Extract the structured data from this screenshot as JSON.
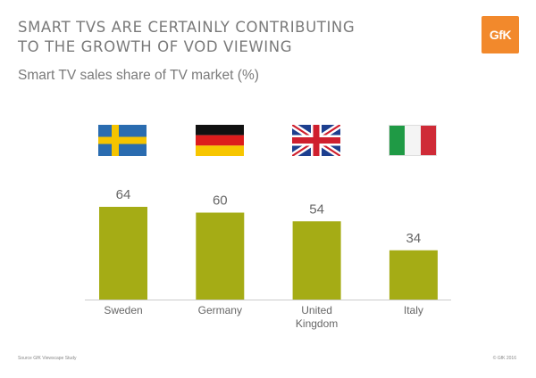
{
  "header": {
    "title_line1": "SMART TVS ARE CERTAINLY CONTRIBUTING",
    "title_line2": "TO THE GROWTH OF VOD VIEWING",
    "subtitle": "Smart TV sales share of TV market (%)",
    "logo_text": "GfK"
  },
  "chart_data": {
    "type": "bar",
    "title": "Smart TV sales share of TV market (%)",
    "categories": [
      "Sweden",
      "Germany",
      "United Kingdom",
      "Italy"
    ],
    "category_lines": [
      [
        "Sweden"
      ],
      [
        "Germany"
      ],
      [
        "United",
        "Kingdom"
      ],
      [
        "Italy"
      ]
    ],
    "values": [
      64,
      60,
      54,
      34
    ],
    "value_labels": [
      "64",
      "60",
      "54",
      "34"
    ],
    "xlabel": "",
    "ylabel": "",
    "ylim": [
      0,
      100
    ],
    "grid": false,
    "bar_color": "#a5ac15"
  },
  "footer": {
    "source": "Source GfK Viewscape Study",
    "copyright": "© GfK 2016"
  },
  "colors": {
    "bar": "#a5ac15",
    "axis": "#cccccc",
    "text": "#7a7a7a",
    "logo": "#f2892c"
  }
}
